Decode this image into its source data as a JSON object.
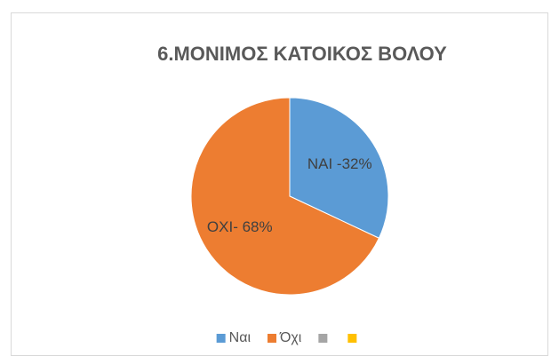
{
  "chart_data": {
    "type": "pie",
    "title": "6.ΜΟΝΙΜΟΣ ΚΑΤΟΙΚΟΣ ΒΟΛΟΥ",
    "categories": [
      "Ναι",
      "Όχι",
      null,
      null
    ],
    "values": [
      32,
      68,
      0,
      0
    ],
    "value_labels": [
      "ΝΑΙ -32%",
      "ΟΧΙ- 68%",
      null,
      null
    ],
    "colors": [
      "#5b9bd5",
      "#ed7d31",
      "#a5a5a5",
      "#ffc000"
    ],
    "legend": "bottom"
  }
}
